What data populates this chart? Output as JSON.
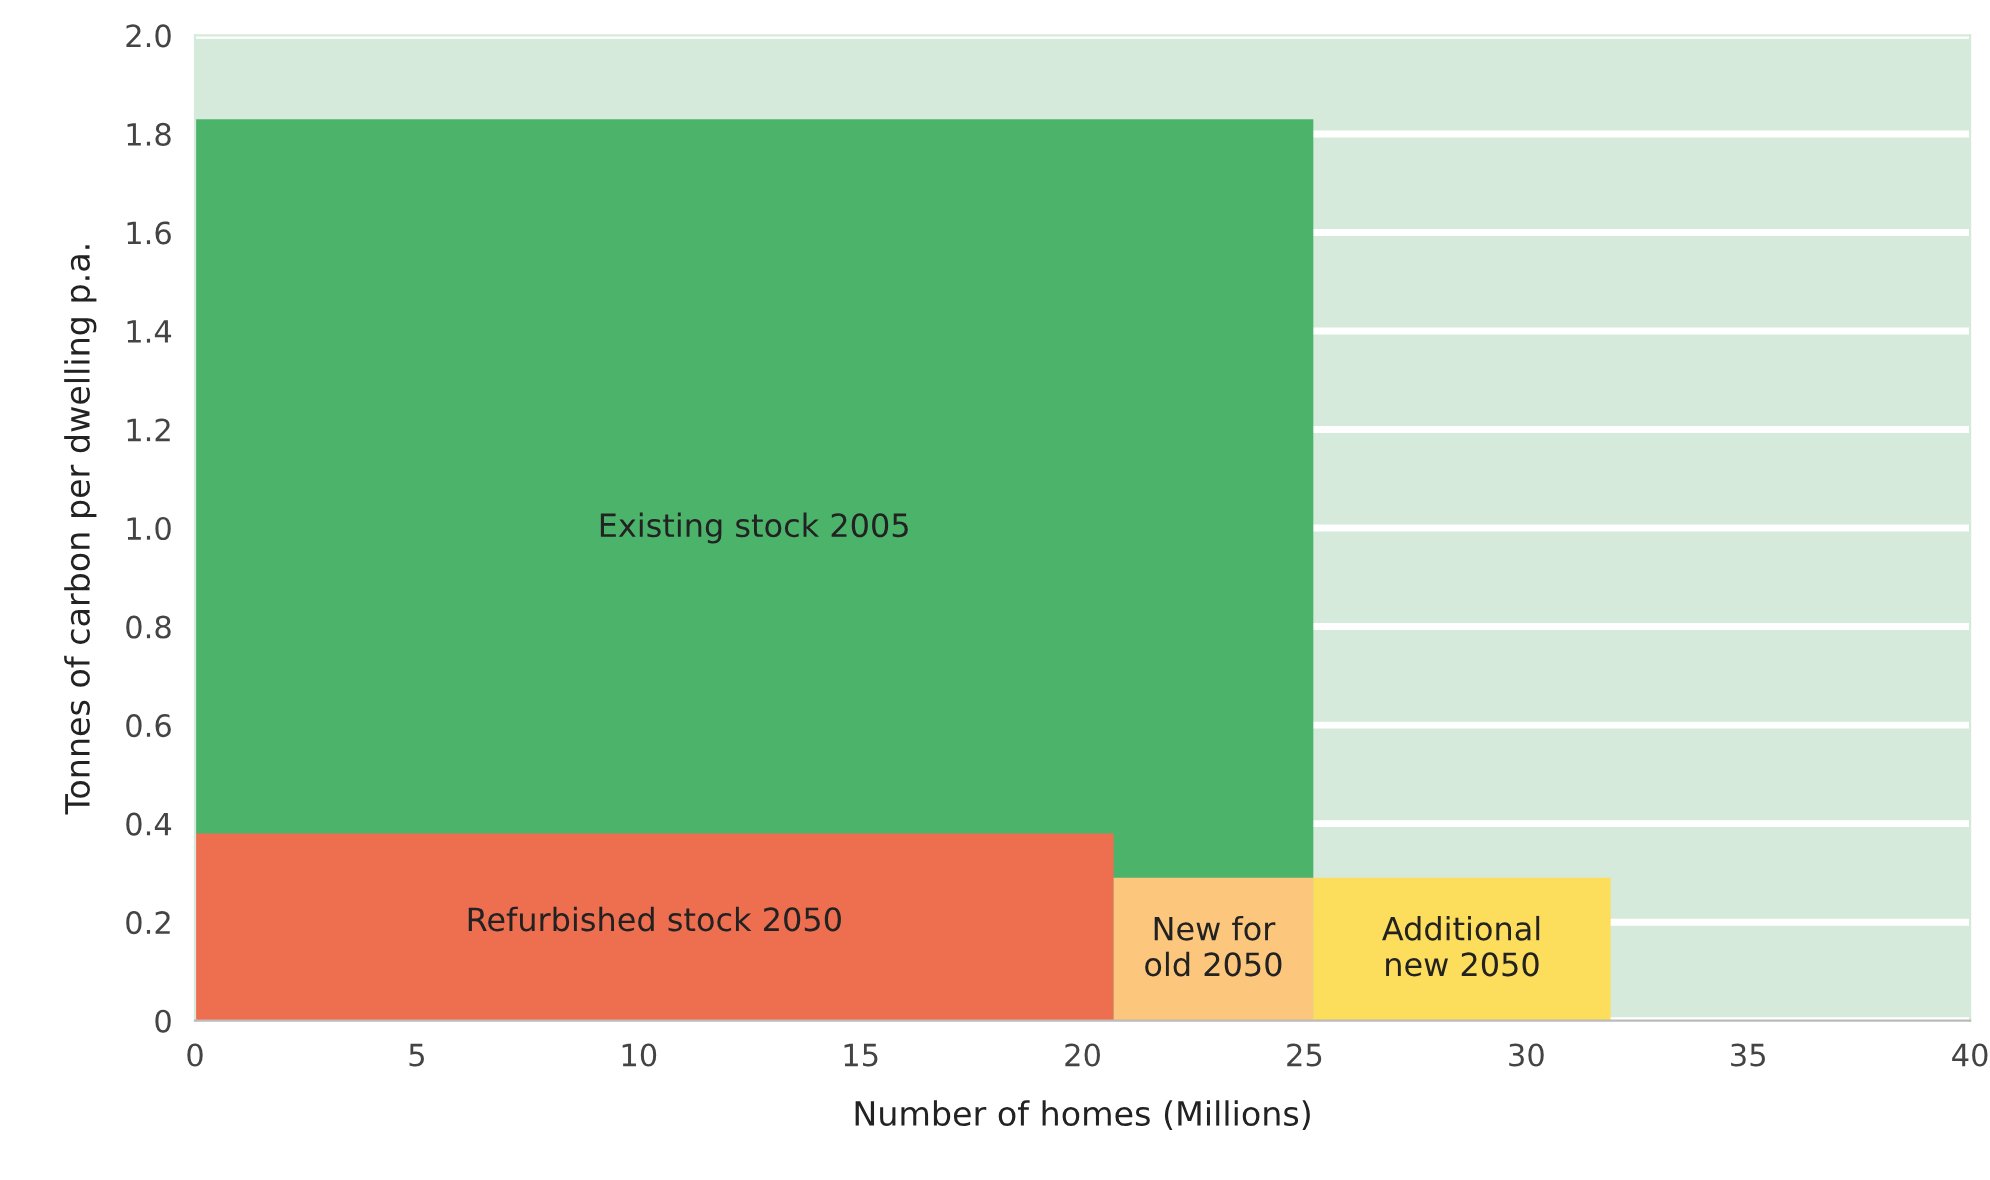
{
  "chart_data": {
    "type": "area",
    "xlabel": "Number of homes (Millions)",
    "ylabel": "Tonnes of carbon per dwelling p.a.",
    "series": [
      {
        "name": "Existing stock 2005",
        "color": "#4cb46a",
        "x": [
          0,
          25.2
        ],
        "values": [
          1.83,
          1.83
        ]
      },
      {
        "name": "Refurbished stock 2050",
        "color": "#ee6e50",
        "x": [
          0,
          20.7
        ],
        "values": [
          0.38,
          0.38
        ]
      },
      {
        "name": "New for\nold 2050",
        "color": "#fcc67c",
        "x": [
          20.7,
          25.2
        ],
        "values": [
          0.29,
          0.29
        ]
      },
      {
        "name": "Additional\nnew 2050",
        "color": "#fddd5c",
        "x": [
          25.2,
          31.9
        ],
        "values": [
          0.29,
          0.29
        ]
      }
    ],
    "xlim": [
      0,
      40
    ],
    "xticks": [
      0,
      5,
      10,
      15,
      20,
      25,
      30,
      35,
      40
    ],
    "ylim": [
      0,
      2
    ],
    "yticks": [
      0,
      {
        "value": 0.2,
        "label": "0.2"
      },
      {
        "value": 0.4,
        "label": "0.4"
      },
      {
        "value": 0.6,
        "label": "0.6"
      },
      {
        "value": 0.8,
        "label": "0.8"
      },
      {
        "value": 1,
        "label": "1.0"
      },
      {
        "value": 1.2,
        "label": "1.2"
      },
      {
        "value": 1.4,
        "label": "1.4"
      },
      {
        "value": 1.6,
        "label": "1.6"
      },
      {
        "value": 1.8,
        "label": "1.8"
      },
      {
        "value": 2,
        "label": "2.0"
      }
    ],
    "grid": "y",
    "legend": false
  }
}
